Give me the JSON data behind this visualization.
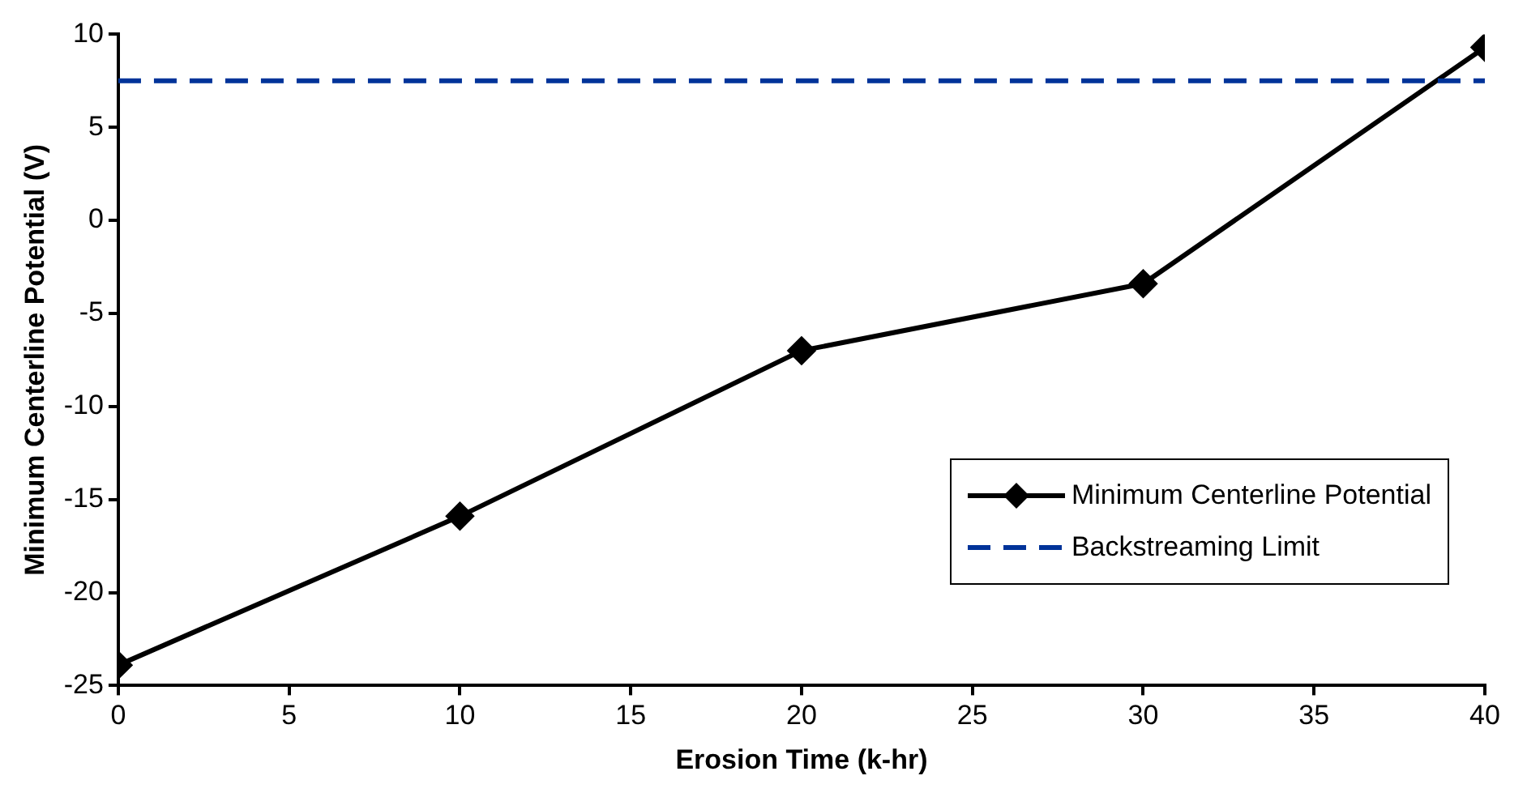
{
  "chart_data": {
    "type": "line",
    "xlabel": "Erosion Time (k-hr)",
    "ylabel": "Minimum Centerline Potential (V)",
    "x": [
      0,
      10,
      20,
      30,
      40
    ],
    "series": [
      {
        "name": "Minimum Centerline Potential",
        "color": "#000000",
        "values": [
          -23.9,
          -15.9,
          -7.0,
          -3.4,
          9.3
        ]
      }
    ],
    "xlim": [
      0,
      40
    ],
    "xticks": [
      0,
      5,
      10,
      15,
      20,
      25,
      30,
      35,
      40
    ],
    "ylim": [
      -25,
      10
    ],
    "yticks": [
      -25,
      -20,
      -15,
      -10,
      -5,
      0,
      5,
      10
    ],
    "ref_lines": [
      {
        "axis": "y",
        "value": 7.5,
        "label": "Backstreaming Limit",
        "color": "#003399",
        "line_style": "dashed"
      }
    ],
    "grid": false,
    "legend": "bottom right",
    "marker": "diamond",
    "line_style": "solid"
  }
}
